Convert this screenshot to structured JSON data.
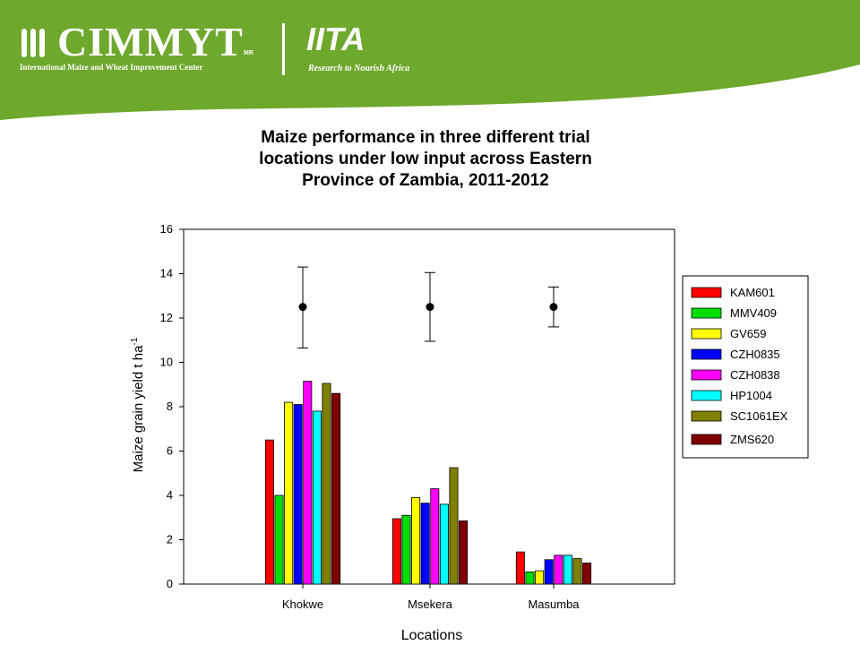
{
  "header": {
    "cimmyt_name": "CIMMYT",
    "cimmyt_mark": "MR",
    "cimmyt_subtitle": "International Maize and Wheat Improvement Center",
    "iita_name": "IITA",
    "iita_tagline": "Research to Nourish Africa",
    "banner_color": "#6ea82d"
  },
  "chart_data": {
    "type": "bar",
    "title": "Maize performance in three different trial\nlocations under low input across Eastern\nProvince of Zambia, 2011-2012",
    "xlabel": "Locations",
    "ylabel": "Maize grain yield t ha",
    "ylabel_superscript": "-1",
    "ylim": [
      0,
      16
    ],
    "yticks": [
      "0",
      "2",
      "4",
      "6",
      "8",
      "10",
      "12",
      "14",
      "16"
    ],
    "categories": [
      "Khokwe",
      "Msekera",
      "Masumba"
    ],
    "legend_position": "right",
    "series": [
      {
        "name": "KAM601",
        "color": "#ff0000",
        "values": [
          6.5,
          2.95,
          1.45
        ]
      },
      {
        "name": "MMV409",
        "color": "#00dd00",
        "values": [
          4.0,
          3.1,
          0.55
        ]
      },
      {
        "name": "GV659",
        "color": "#ffff00",
        "values": [
          8.2,
          3.9,
          0.6
        ]
      },
      {
        "name": "CZH0835",
        "color": "#0000ff",
        "values": [
          8.1,
          3.65,
          1.1
        ]
      },
      {
        "name": "CZH0838",
        "color": "#ff00ff",
        "values": [
          9.15,
          4.3,
          1.3
        ]
      },
      {
        "name": "HP1004",
        "color": "#00ffff",
        "values": [
          7.8,
          3.6,
          1.3
        ]
      },
      {
        "name": "SC1061EX",
        "color": "#808000",
        "values": [
          9.05,
          5.25,
          1.15
        ]
      },
      {
        "name": "ZMS620",
        "color": "#800000",
        "values": [
          8.6,
          2.85,
          0.95
        ]
      }
    ],
    "error_bars": [
      {
        "category": "Khokwe",
        "mean": 12.5,
        "low": 10.65,
        "high": 14.3
      },
      {
        "category": "Msekera",
        "mean": 12.5,
        "low": 10.95,
        "high": 14.05
      },
      {
        "category": "Masumba",
        "mean": 12.5,
        "low": 11.6,
        "high": 13.4
      }
    ]
  }
}
